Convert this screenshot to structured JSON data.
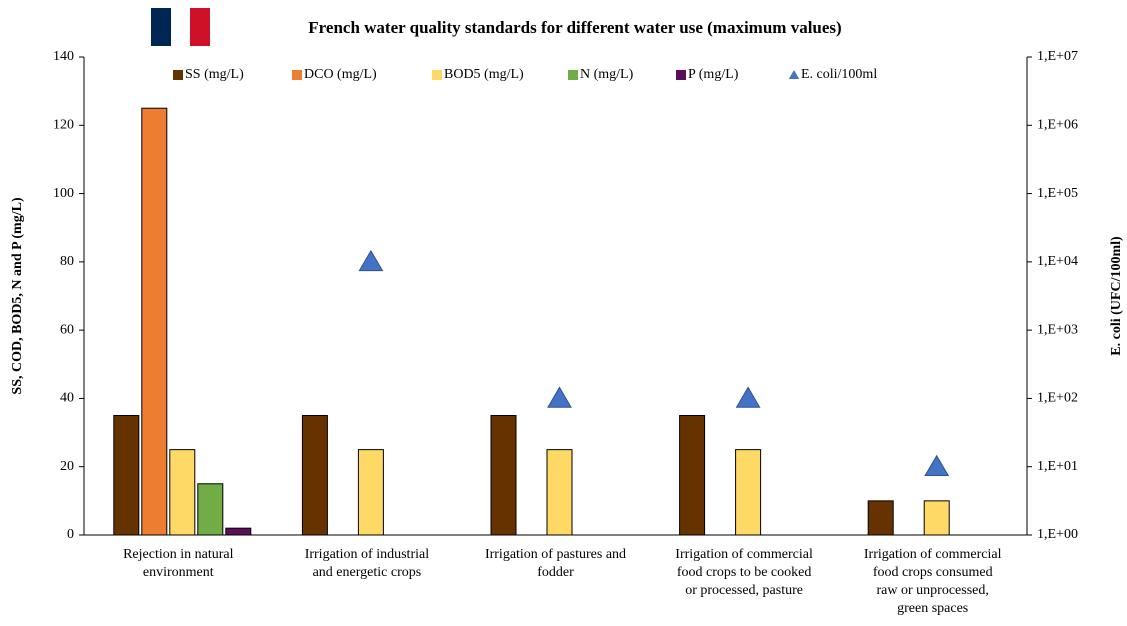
{
  "chart_data": {
    "type": "bar",
    "title": "French water quality standards for different water use (maximum values)",
    "y_label": "SS, COD, BOD5, N and P (mg/L)",
    "y2_label": "E. coli (UFC/100ml)",
    "categories": [
      [
        "Rejection in natural",
        "environment"
      ],
      [
        "Irrigation of industrial",
        "and energetic crops"
      ],
      [
        "Irrigation of pastures and",
        "fodder"
      ],
      [
        "Irrigation of commercial",
        "food crops  to be cooked",
        "or processed, pasture"
      ],
      [
        "Irrigation of commercial",
        "food crops  consumed",
        "raw or unprocessed,",
        "green spaces"
      ]
    ],
    "series": [
      {
        "name": "SS (mg/L)",
        "color": "#663300",
        "values": [
          35,
          35,
          35,
          35,
          10
        ]
      },
      {
        "name": "DCO (mg/L)",
        "color": "#ed7d31",
        "values": [
          125,
          null,
          null,
          null,
          null
        ]
      },
      {
        "name": "BOD5 (mg/L)",
        "color": "#ffd966",
        "values": [
          25,
          25,
          25,
          25,
          10
        ]
      },
      {
        "name": "N (mg/L)",
        "color": "#70ad47",
        "values": [
          15,
          null,
          null,
          null,
          null
        ]
      },
      {
        "name": "P (mg/L)",
        "color": "#5b0f5b",
        "values": [
          2,
          null,
          null,
          null,
          null
        ]
      },
      {
        "name": "E. coli/100ml",
        "color": "#4472c4",
        "type": "scatter",
        "marker": "triangle",
        "axis": "y2",
        "values": [
          null,
          10000,
          100,
          100,
          10
        ]
      }
    ],
    "ylim": [
      0,
      140
    ],
    "yticks": [
      0,
      20,
      40,
      60,
      80,
      100,
      120,
      140
    ],
    "y2lim": [
      1,
      10000000
    ],
    "y2scale": "log",
    "y2ticks": [
      {
        "value": 1,
        "label": "1,E+00"
      },
      {
        "value": 10,
        "label": "1,E+01"
      },
      {
        "value": 100,
        "label": "1,E+02"
      },
      {
        "value": 1000,
        "label": "1,E+03"
      },
      {
        "value": 10000,
        "label": "1,E+04"
      },
      {
        "value": 100000,
        "label": "1,E+05"
      },
      {
        "value": 1000000,
        "label": "1,E+06"
      },
      {
        "value": 10000000,
        "label": "1,E+07"
      }
    ],
    "grid": false,
    "legend": "top"
  }
}
